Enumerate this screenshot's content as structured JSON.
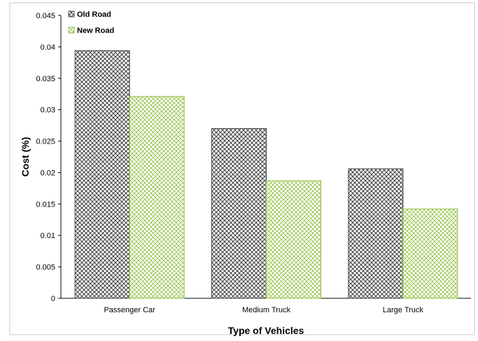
{
  "chart_data": {
    "type": "bar",
    "categories": [
      "Passenger Car",
      "Medium Truck",
      "Large Truck"
    ],
    "series": [
      {
        "name": "Old Road",
        "values": [
          0.0394,
          0.027,
          0.0206
        ],
        "color": "#404040",
        "pattern": "diagonal-crosshatch"
      },
      {
        "name": "New Road",
        "values": [
          0.0321,
          0.0187,
          0.0142
        ],
        "color": "#8fbf3f",
        "pattern": "diagonal-crosshatch"
      }
    ],
    "title": "",
    "xlabel": "Type of Vehicles",
    "ylabel": "Cost (%)",
    "ylim": [
      0,
      0.045
    ],
    "yticks": [
      "0",
      "0.005",
      "0.01",
      "0.015",
      "0.02",
      "0.025",
      "0.03",
      "0.035",
      "0.04",
      "0.045"
    ],
    "grid": false,
    "legend": "top-left"
  }
}
